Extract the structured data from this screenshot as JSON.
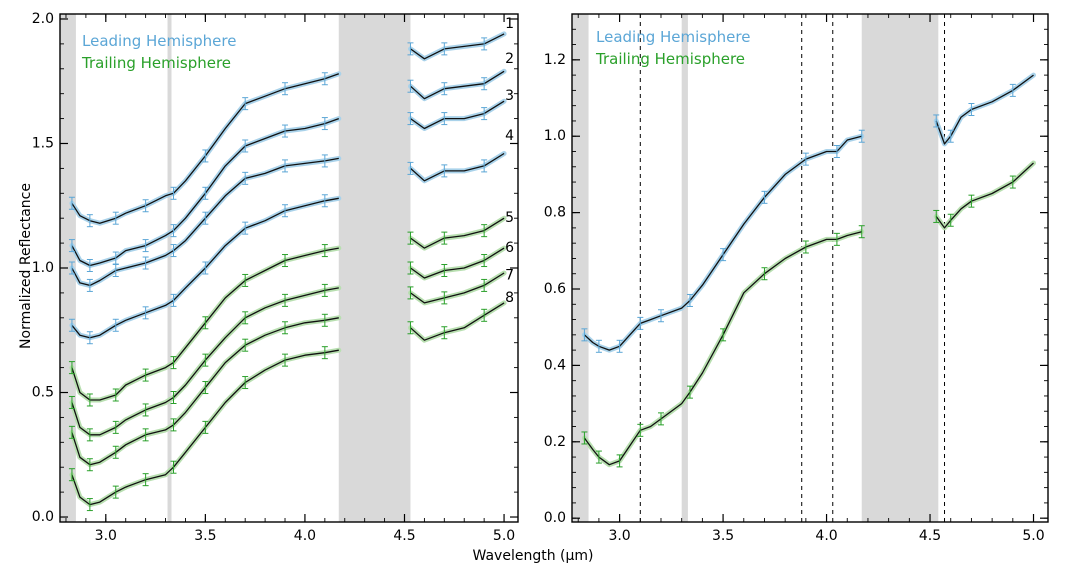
{
  "figure": {
    "xlabel": "Wavelength (μm)"
  },
  "chart_data": [
    {
      "type": "line",
      "panel": "left",
      "ylabel": "Normalized Reflectance",
      "xlim": [
        2.77,
        5.07
      ],
      "ylim": [
        -0.02,
        2.02
      ],
      "xticks": [
        3.0,
        3.5,
        4.0,
        4.5,
        5.0
      ],
      "xtick_labels": [
        "3.0",
        "3.5",
        "4.0",
        "4.5",
        "5.0"
      ],
      "yticks": [
        0.0,
        0.5,
        1.0,
        1.5,
        2.0
      ],
      "ytick_labels": [
        "0.0",
        "0.5",
        "1.0",
        "1.5",
        "2.0"
      ],
      "grid": false,
      "legend": {
        "placement": "top-left",
        "entries": [
          {
            "label": "Leading Hemisphere",
            "color": "#5ba6d6"
          },
          {
            "label": "Trailing Hemisphere",
            "color": "#2aa02a"
          }
        ]
      },
      "shaded_regions": [
        [
          2.77,
          2.85
        ],
        [
          3.31,
          3.33
        ],
        [
          4.17,
          4.53
        ]
      ],
      "series": [
        {
          "label": "1",
          "hemisphere": "leading",
          "x": [
            2.83,
            2.87,
            2.92,
            2.97,
            3.05,
            3.1,
            3.2,
            3.3,
            3.34,
            3.4,
            3.5,
            3.6,
            3.7,
            3.8,
            3.9,
            4.0,
            4.1,
            4.17
          ],
          "y": [
            1.26,
            1.21,
            1.19,
            1.18,
            1.2,
            1.22,
            1.25,
            1.29,
            1.3,
            1.35,
            1.45,
            1.56,
            1.66,
            1.69,
            1.72,
            1.74,
            1.76,
            1.78
          ],
          "seg2_x": [
            4.53,
            4.6,
            4.7,
            4.8,
            4.9,
            5.0
          ],
          "seg2_y": [
            1.88,
            1.84,
            1.88,
            1.89,
            1.9,
            1.94
          ],
          "label_y": 1.98
        },
        {
          "label": "2",
          "hemisphere": "leading",
          "x": [
            2.83,
            2.87,
            2.92,
            2.97,
            3.05,
            3.1,
            3.2,
            3.3,
            3.34,
            3.4,
            3.5,
            3.6,
            3.7,
            3.8,
            3.9,
            4.0,
            4.1,
            4.17
          ],
          "y": [
            1.09,
            1.03,
            1.01,
            1.02,
            1.04,
            1.07,
            1.09,
            1.13,
            1.15,
            1.2,
            1.3,
            1.41,
            1.49,
            1.52,
            1.55,
            1.56,
            1.58,
            1.6
          ],
          "seg2_x": [
            4.53,
            4.6,
            4.7,
            4.8,
            4.9,
            5.0
          ],
          "seg2_y": [
            1.73,
            1.68,
            1.72,
            1.73,
            1.74,
            1.79
          ],
          "label_y": 1.84
        },
        {
          "label": "3",
          "hemisphere": "leading",
          "x": [
            2.83,
            2.87,
            2.92,
            2.97,
            3.05,
            3.1,
            3.2,
            3.3,
            3.34,
            3.4,
            3.5,
            3.6,
            3.7,
            3.8,
            3.9,
            4.0,
            4.1,
            4.17
          ],
          "y": [
            1.0,
            0.94,
            0.93,
            0.95,
            0.99,
            1.0,
            1.02,
            1.05,
            1.07,
            1.11,
            1.2,
            1.29,
            1.36,
            1.38,
            1.41,
            1.42,
            1.43,
            1.44
          ],
          "seg2_x": [
            4.53,
            4.6,
            4.7,
            4.8,
            4.9,
            5.0
          ],
          "seg2_y": [
            1.6,
            1.56,
            1.6,
            1.6,
            1.62,
            1.67
          ],
          "label_y": 1.69
        },
        {
          "label": "4",
          "hemisphere": "leading",
          "x": [
            2.83,
            2.87,
            2.92,
            2.97,
            3.05,
            3.1,
            3.2,
            3.3,
            3.34,
            3.4,
            3.5,
            3.6,
            3.7,
            3.8,
            3.9,
            4.0,
            4.1,
            4.17
          ],
          "y": [
            0.77,
            0.73,
            0.72,
            0.73,
            0.77,
            0.79,
            0.82,
            0.85,
            0.87,
            0.92,
            1.0,
            1.09,
            1.16,
            1.19,
            1.23,
            1.25,
            1.27,
            1.28
          ],
          "seg2_x": [
            4.53,
            4.6,
            4.7,
            4.8,
            4.9,
            5.0
          ],
          "seg2_y": [
            1.4,
            1.35,
            1.39,
            1.39,
            1.41,
            1.46
          ],
          "label_y": 1.53
        },
        {
          "label": "5",
          "hemisphere": "trailing",
          "x": [
            2.83,
            2.87,
            2.92,
            2.97,
            3.05,
            3.1,
            3.2,
            3.3,
            3.34,
            3.4,
            3.5,
            3.6,
            3.7,
            3.8,
            3.9,
            4.0,
            4.1,
            4.17
          ],
          "y": [
            0.6,
            0.5,
            0.47,
            0.47,
            0.49,
            0.53,
            0.57,
            0.6,
            0.62,
            0.68,
            0.78,
            0.88,
            0.95,
            0.99,
            1.03,
            1.05,
            1.07,
            1.08
          ],
          "seg2_x": [
            4.53,
            4.6,
            4.7,
            4.8,
            4.9,
            5.0
          ],
          "seg2_y": [
            1.12,
            1.08,
            1.12,
            1.13,
            1.15,
            1.2
          ],
          "label_y": 1.2
        },
        {
          "label": "6",
          "hemisphere": "trailing",
          "x": [
            2.83,
            2.87,
            2.92,
            2.97,
            3.05,
            3.1,
            3.2,
            3.3,
            3.34,
            3.4,
            3.5,
            3.6,
            3.7,
            3.8,
            3.9,
            4.0,
            4.1,
            4.17
          ],
          "y": [
            0.46,
            0.36,
            0.33,
            0.33,
            0.36,
            0.39,
            0.43,
            0.46,
            0.48,
            0.53,
            0.63,
            0.72,
            0.8,
            0.84,
            0.87,
            0.89,
            0.91,
            0.92
          ],
          "seg2_x": [
            4.53,
            4.6,
            4.7,
            4.8,
            4.9,
            5.0
          ],
          "seg2_y": [
            1.0,
            0.96,
            0.99,
            1.0,
            1.03,
            1.08
          ],
          "label_y": 1.08
        },
        {
          "label": "7",
          "hemisphere": "trailing",
          "x": [
            2.83,
            2.87,
            2.92,
            2.97,
            3.05,
            3.1,
            3.2,
            3.3,
            3.34,
            3.4,
            3.5,
            3.6,
            3.7,
            3.8,
            3.9,
            4.0,
            4.1,
            4.17
          ],
          "y": [
            0.34,
            0.24,
            0.21,
            0.22,
            0.26,
            0.29,
            0.33,
            0.35,
            0.37,
            0.42,
            0.52,
            0.62,
            0.69,
            0.73,
            0.76,
            0.78,
            0.79,
            0.8
          ],
          "seg2_x": [
            4.53,
            4.6,
            4.7,
            4.8,
            4.9,
            5.0
          ],
          "seg2_y": [
            0.9,
            0.86,
            0.88,
            0.9,
            0.93,
            0.98
          ],
          "label_y": 0.97
        },
        {
          "label": "8",
          "hemisphere": "trailing",
          "x": [
            2.83,
            2.87,
            2.92,
            2.97,
            3.05,
            3.1,
            3.2,
            3.3,
            3.34,
            3.4,
            3.5,
            3.6,
            3.7,
            3.8,
            3.9,
            4.0,
            4.1,
            4.17
          ],
          "y": [
            0.17,
            0.08,
            0.05,
            0.06,
            0.1,
            0.12,
            0.15,
            0.17,
            0.2,
            0.26,
            0.36,
            0.46,
            0.54,
            0.59,
            0.63,
            0.65,
            0.66,
            0.67
          ],
          "seg2_x": [
            4.53,
            4.6,
            4.7,
            4.8,
            4.9,
            5.0
          ],
          "seg2_y": [
            0.76,
            0.71,
            0.74,
            0.76,
            0.81,
            0.86
          ],
          "label_y": 0.88
        }
      ]
    },
    {
      "type": "line",
      "panel": "right",
      "xlim": [
        2.77,
        5.07
      ],
      "ylim": [
        -0.01,
        1.32
      ],
      "xticks": [
        3.0,
        3.5,
        4.0,
        4.5,
        5.0
      ],
      "xtick_labels": [
        "3.0",
        "3.5",
        "4.0",
        "4.5",
        "5.0"
      ],
      "yticks": [
        0.0,
        0.2,
        0.4,
        0.6,
        0.8,
        1.0,
        1.2
      ],
      "ytick_labels": [
        "0.0",
        "0.2",
        "0.4",
        "0.6",
        "0.8",
        "1.0",
        "1.2"
      ],
      "grid": false,
      "legend": {
        "placement": "top-left",
        "entries": [
          {
            "label": "Leading Hemisphere",
            "color": "#5ba6d6"
          },
          {
            "label": "Trailing Hemisphere",
            "color": "#2aa02a"
          }
        ]
      },
      "shaded_regions": [
        [
          2.77,
          2.85
        ],
        [
          3.3,
          3.33
        ],
        [
          4.17,
          4.54
        ]
      ],
      "dashed_lines": [
        3.1,
        3.88,
        4.03,
        4.57
      ],
      "series": [
        {
          "name": "Leading Hemisphere",
          "hemisphere": "leading",
          "x": [
            2.83,
            2.87,
            2.9,
            2.95,
            3.0,
            3.05,
            3.1,
            3.15,
            3.2,
            3.3,
            3.34,
            3.4,
            3.5,
            3.6,
            3.7,
            3.8,
            3.9,
            4.0,
            4.05,
            4.1,
            4.17
          ],
          "y": [
            0.48,
            0.46,
            0.45,
            0.44,
            0.45,
            0.48,
            0.51,
            0.52,
            0.53,
            0.55,
            0.57,
            0.61,
            0.69,
            0.77,
            0.84,
            0.9,
            0.94,
            0.96,
            0.96,
            0.99,
            1.0
          ],
          "seg2_x": [
            4.53,
            4.57,
            4.6,
            4.65,
            4.7,
            4.8,
            4.9,
            5.0
          ],
          "seg2_y": [
            1.04,
            0.98,
            1.0,
            1.05,
            1.07,
            1.09,
            1.12,
            1.16
          ]
        },
        {
          "name": "Trailing Hemisphere",
          "hemisphere": "trailing",
          "x": [
            2.83,
            2.87,
            2.9,
            2.95,
            3.0,
            3.05,
            3.1,
            3.15,
            3.2,
            3.3,
            3.34,
            3.4,
            3.5,
            3.6,
            3.7,
            3.8,
            3.9,
            4.0,
            4.05,
            4.1,
            4.17
          ],
          "y": [
            0.21,
            0.18,
            0.16,
            0.14,
            0.15,
            0.19,
            0.23,
            0.24,
            0.26,
            0.3,
            0.33,
            0.38,
            0.48,
            0.59,
            0.64,
            0.68,
            0.71,
            0.73,
            0.73,
            0.74,
            0.75
          ],
          "seg2_x": [
            4.53,
            4.57,
            4.6,
            4.65,
            4.7,
            4.8,
            4.9,
            5.0
          ],
          "seg2_y": [
            0.79,
            0.76,
            0.78,
            0.81,
            0.83,
            0.85,
            0.88,
            0.93
          ]
        }
      ]
    }
  ]
}
